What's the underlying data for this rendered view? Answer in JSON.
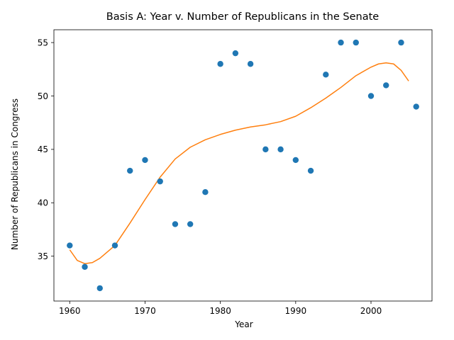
{
  "chart_data": {
    "type": "scatter",
    "title": "Basis A: Year v. Number of Republicans in the Senate",
    "xlabel": "Year",
    "ylabel": "Number of Republicans in Congress",
    "xlim": [
      1957.9,
      2008.1
    ],
    "ylim": [
      30.8,
      56.2
    ],
    "xticks": [
      1960,
      1970,
      1980,
      1990,
      2000
    ],
    "yticks": [
      35,
      40,
      45,
      50,
      55
    ],
    "grid": false,
    "series": [
      {
        "type": "scatter",
        "color": "#1f77b4",
        "x": [
          1960,
          1962,
          1964,
          1966,
          1968,
          1970,
          1972,
          1974,
          1976,
          1978,
          1980,
          1982,
          1984,
          1986,
          1988,
          1990,
          1992,
          1994,
          1996,
          1998,
          2000,
          2002,
          2004,
          2006
        ],
        "y": [
          36,
          34,
          32,
          36,
          43,
          44,
          42,
          38,
          38,
          41,
          53,
          54,
          53,
          45,
          45,
          44,
          43,
          52,
          55,
          55,
          50,
          51,
          55,
          49
        ]
      },
      {
        "type": "line",
        "color": "#ff7f0e",
        "x": [
          1960,
          1961,
          1962,
          1963,
          1964,
          1966,
          1968,
          1970,
          1972,
          1974,
          1976,
          1978,
          1980,
          1982,
          1984,
          1986,
          1988,
          1990,
          1992,
          1994,
          1996,
          1998,
          2000,
          2001,
          2002,
          2003,
          2004,
          2005
        ],
        "y": [
          35.6,
          34.6,
          34.3,
          34.4,
          34.8,
          36.0,
          38.1,
          40.3,
          42.4,
          44.1,
          45.2,
          45.9,
          46.4,
          46.8,
          47.1,
          47.3,
          47.6,
          48.1,
          48.9,
          49.8,
          50.8,
          51.9,
          52.7,
          53.0,
          53.1,
          53.0,
          52.4,
          51.4
        ]
      }
    ]
  }
}
